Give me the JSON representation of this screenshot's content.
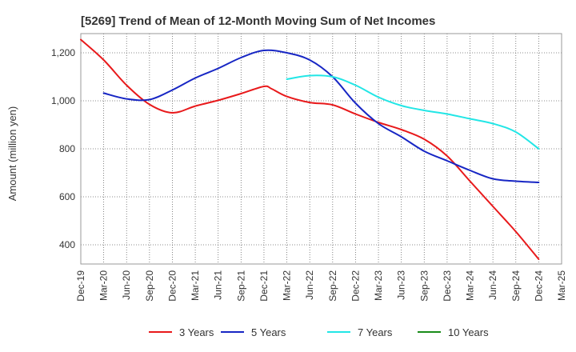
{
  "chart_data": {
    "type": "line",
    "title": "[5269]  Trend of Mean of 12-Month Moving Sum of Net Incomes",
    "xlabel": "",
    "ylabel": "Amount (million yen)",
    "ylim": [
      320,
      1280
    ],
    "yticks": [
      400,
      600,
      800,
      1000,
      1200
    ],
    "ytick_labels": [
      "400",
      "600",
      "800",
      "1,000",
      "1,200"
    ],
    "x_start": "Dec-19",
    "xtick_labels": [
      "Dec-19",
      "Mar-20",
      "Jun-20",
      "Sep-20",
      "Dec-20",
      "Mar-21",
      "Jun-21",
      "Sep-21",
      "Dec-21",
      "Mar-22",
      "Jun-22",
      "Sep-22",
      "Dec-22",
      "Mar-23",
      "Jun-23",
      "Sep-23",
      "Dec-23",
      "Mar-24",
      "Jun-24",
      "Sep-24",
      "Dec-24",
      "Mar-25"
    ],
    "grid": true,
    "legend_position": "bottom",
    "series": [
      {
        "name": "3 Years",
        "color": "#e8191b",
        "x": [
          "Dec-19",
          "Mar-20",
          "Jun-20",
          "Sep-20",
          "Dec-20",
          "Mar-21",
          "Jun-21",
          "Sep-21",
          "Dec-21",
          "Jan-22",
          "Mar-22",
          "Jun-22",
          "Sep-22",
          "Dec-22",
          "Mar-23",
          "Jun-23",
          "Sep-23",
          "Dec-23",
          "Mar-24",
          "Jun-24",
          "Sep-24",
          "Dec-24"
        ],
        "values": [
          1255,
          1170,
          1065,
          985,
          950,
          978,
          1002,
          1030,
          1060,
          1050,
          1018,
          993,
          983,
          945,
          910,
          880,
          840,
          770,
          665,
          560,
          455,
          340
        ]
      },
      {
        "name": "5 Years",
        "color": "#1726c4",
        "x": [
          "Mar-20",
          "Jun-20",
          "Sep-20",
          "Dec-20",
          "Mar-21",
          "Jun-21",
          "Sep-21",
          "Dec-21",
          "Mar-22",
          "Jun-22",
          "Sep-22",
          "Dec-22",
          "Mar-23",
          "Jun-23",
          "Sep-23",
          "Dec-23",
          "Mar-24",
          "Jun-24",
          "Sep-24",
          "Dec-24"
        ],
        "values": [
          1032,
          1008,
          1005,
          1045,
          1095,
          1135,
          1180,
          1210,
          1200,
          1170,
          1100,
          990,
          905,
          850,
          790,
          750,
          710,
          675,
          665,
          660
        ]
      },
      {
        "name": "7 Years",
        "color": "#22e6e6",
        "x": [
          "Mar-22",
          "Jun-22",
          "Sep-22",
          "Dec-22",
          "Mar-23",
          "Jun-23",
          "Sep-23",
          "Dec-23",
          "Mar-24",
          "Jun-24",
          "Sep-24",
          "Dec-24"
        ],
        "values": [
          1090,
          1105,
          1100,
          1065,
          1015,
          980,
          960,
          945,
          925,
          905,
          870,
          800
        ]
      },
      {
        "name": "10 Years",
        "color": "#1a8c1a",
        "x": [],
        "values": []
      }
    ]
  }
}
